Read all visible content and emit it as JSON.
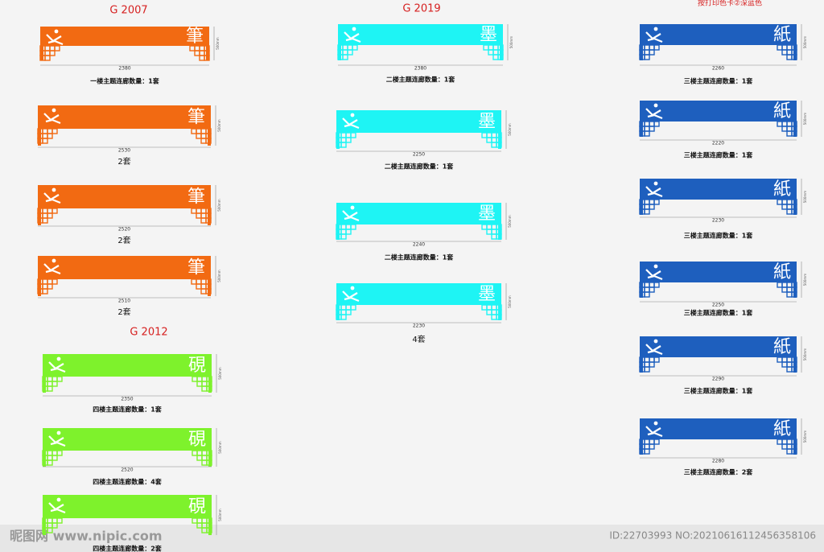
{
  "groups": [
    {
      "header": "G 2007",
      "glyph": "筆",
      "color": "#f26a12",
      "panels": [
        {
          "width_label": "2380",
          "height_label": "500mm",
          "caption": "一楼主题连廊数量：1套"
        },
        {
          "width_label": "2530",
          "height_label": "500mm",
          "caption": "2套"
        },
        {
          "width_label": "2520",
          "height_label": "500mm",
          "caption": "2套"
        },
        {
          "width_label": "2510",
          "height_label": "500mm",
          "caption": "2套"
        }
      ]
    },
    {
      "header": "G 2012",
      "glyph": "硯",
      "color": "#7ef22c",
      "panels": [
        {
          "width_label": "2350",
          "height_label": "500mm",
          "caption": "四楼主题连廊数量：1套"
        },
        {
          "width_label": "2520",
          "height_label": "500mm",
          "caption": "四楼主题连廊数量：4套"
        },
        {
          "height_label": "500mm",
          "caption": "四楼主题连廊数量：2套"
        }
      ]
    },
    {
      "header": "G 2019",
      "glyph": "墨",
      "color": "#1ef4f4",
      "panels": [
        {
          "width_label": "2380",
          "height_label": "500mm",
          "caption": "二楼主题连廊数量：1套"
        },
        {
          "width_label": "2250",
          "height_label": "500mm",
          "caption": "二楼主题连廊数量：1套"
        },
        {
          "width_label": "2240",
          "height_label": "500mm",
          "caption": "二楼主题连廊数量：1套"
        },
        {
          "width_label": "2230",
          "height_label": "500mm",
          "caption": "4套"
        }
      ]
    },
    {
      "header": "按打印色卡②深蓝色",
      "glyph": "紙",
      "color": "#1e5fbe",
      "panels": [
        {
          "width_label": "2260",
          "height_label": "500mm",
          "caption": "三楼主题连廊数量：1套"
        },
        {
          "width_label": "2220",
          "height_label": "500mm",
          "caption": "三楼主题连廊数量：1套"
        },
        {
          "width_label": "2230",
          "height_label": "500mm",
          "caption": "三楼主题连廊数量：1套"
        },
        {
          "width_label": "2250",
          "height_label": "500mm",
          "caption": "三楼主题连廊数量：1套"
        },
        {
          "width_label": "2290",
          "height_label": "500mm",
          "caption": "三楼主题连廊数量：1套"
        },
        {
          "width_label": "2280",
          "height_label": "500mm",
          "caption": "三楼主题连廊数量：2套"
        }
      ]
    }
  ],
  "watermark": {
    "site": "昵图网 www.nipic.com",
    "id": "ID:22703993 NO:20210616112456358106"
  }
}
